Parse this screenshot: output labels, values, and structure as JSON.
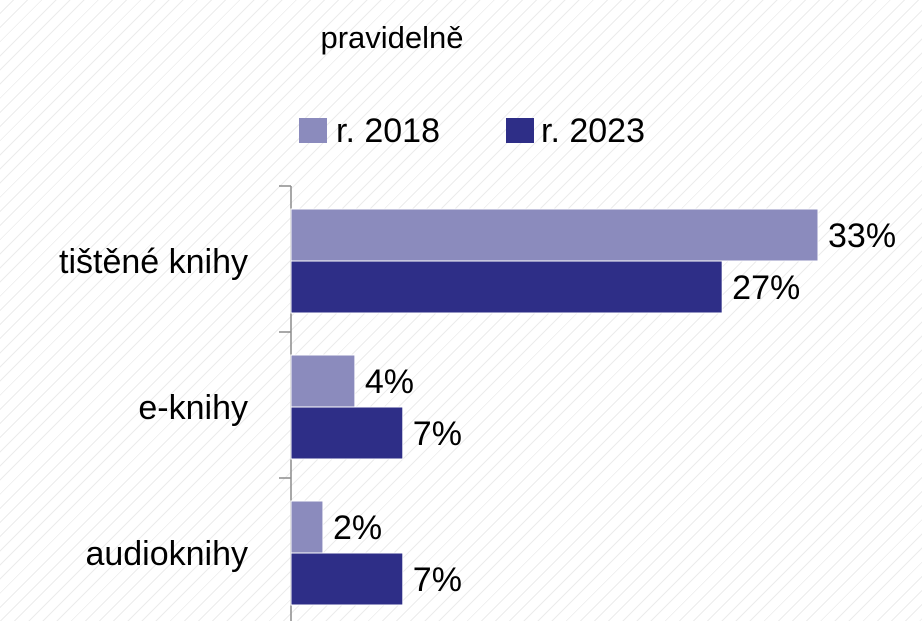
{
  "chart_data": {
    "type": "bar",
    "orientation": "horizontal",
    "title": "pravidelně",
    "categories": [
      "tištěné knihy",
      "e-knihy",
      "audioknihy"
    ],
    "series": [
      {
        "name": "r. 2018",
        "values": [
          33,
          4,
          2
        ],
        "labels": [
          "33%",
          "4%",
          "2%"
        ],
        "color": "#8B8BBD"
      },
      {
        "name": "r. 2023",
        "values": [
          27,
          7,
          7
        ],
        "labels": [
          "27%",
          "7%",
          "7%"
        ],
        "color": "#2E2E87"
      }
    ],
    "xlim": [
      0,
      33
    ],
    "value_unit": "%",
    "legend_position": "top",
    "grid": false
  }
}
